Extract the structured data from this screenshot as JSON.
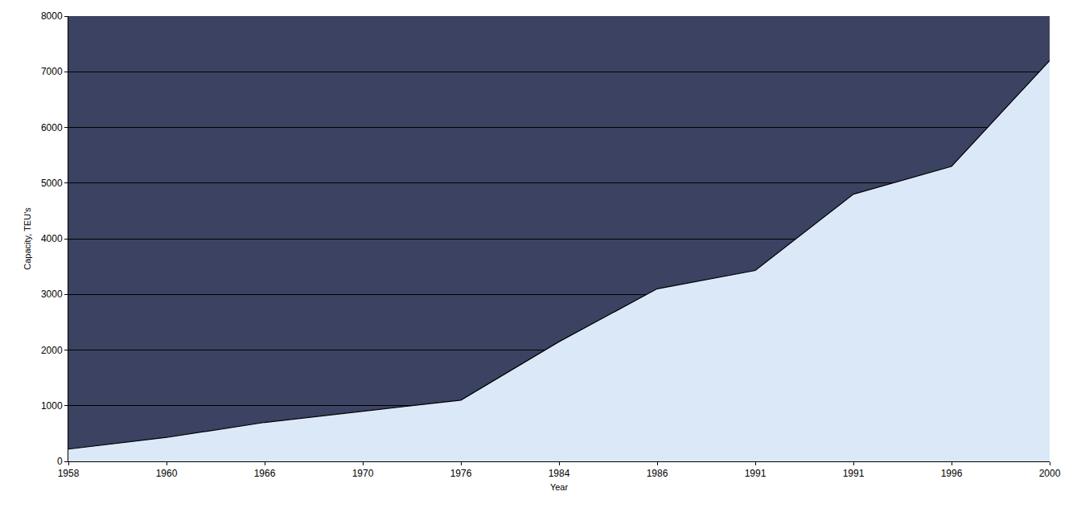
{
  "chart_data": {
    "type": "area",
    "x_label": "Year",
    "y_label": "Capacity, TEU's",
    "categories": [
      "1958",
      "1960",
      "1966",
      "1970",
      "1976",
      "1984",
      "1986",
      "1991",
      "1991",
      "1996",
      "2000"
    ],
    "values": [
      220,
      430,
      700,
      900,
      1100,
      2150,
      3100,
      3430,
      4800,
      5300,
      7200
    ],
    "color": "#dbe8f7",
    "ylim": [
      0,
      8000
    ],
    "yticks": [
      0,
      1000,
      2000,
      3000,
      4000,
      5000,
      6000,
      7000,
      8000
    ],
    "grid": true
  }
}
